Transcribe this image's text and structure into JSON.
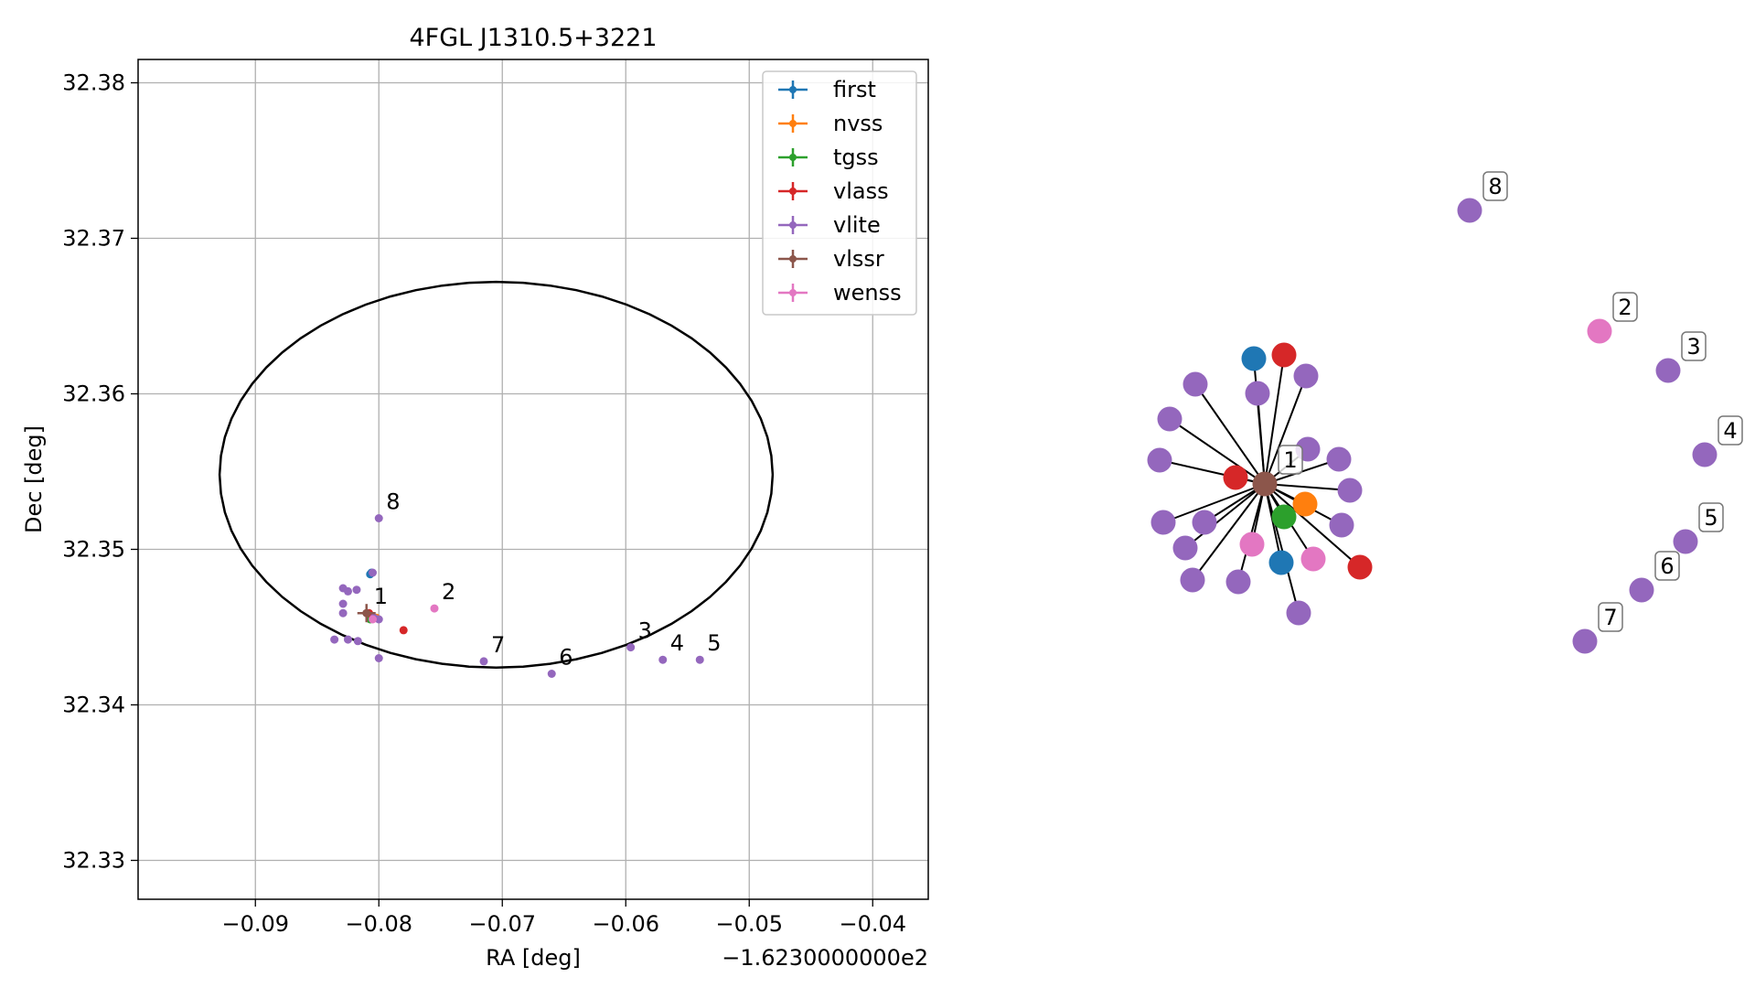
{
  "chart_data": [
    {
      "type": "scatter",
      "title": "4FGL J1310.5+3221",
      "xlabel": "RA [deg]",
      "ylabel": "Dec [deg]",
      "x_offset_text": "−1.6230000000e2",
      "xlim": [
        -0.0995,
        -0.0355
      ],
      "ylim": [
        32.3275,
        32.3815
      ],
      "x_ticks": [
        -0.09,
        -0.08,
        -0.07,
        -0.06,
        -0.05,
        -0.04
      ],
      "x_tick_labels": [
        "−0.09",
        "−0.08",
        "−0.07",
        "−0.06",
        "−0.05",
        "−0.04"
      ],
      "y_ticks": [
        32.33,
        32.34,
        32.35,
        32.36,
        32.37,
        32.38
      ],
      "y_tick_labels": [
        "32.33",
        "32.34",
        "32.35",
        "32.36",
        "32.37",
        "32.38"
      ],
      "grid": true,
      "legend_position": "top-right",
      "ellipse": {
        "center": [
          -0.0705,
          32.3548
        ],
        "semi_axes": [
          0.0224,
          0.0124
        ],
        "color": "#000000"
      },
      "series": [
        {
          "name": "first",
          "color": "#1f77b4",
          "points": [
            [
              -0.0806,
              32.3485
            ],
            [
              -0.0807,
              32.3484
            ]
          ]
        },
        {
          "name": "nvss",
          "color": "#ff7f0e",
          "points": [
            [
              -0.0802,
              32.3456
            ]
          ]
        },
        {
          "name": "tgss",
          "color": "#2ca02c",
          "points": [
            [
              -0.0807,
              32.3455
            ]
          ]
        },
        {
          "name": "vlass",
          "color": "#d62728",
          "points": [
            [
              -0.0808,
              32.3459
            ],
            [
              -0.078,
              32.3448
            ]
          ]
        },
        {
          "name": "vlite",
          "color": "#9467bd",
          "points": [
            [
              -0.0829,
              32.3475
            ],
            [
              -0.0825,
              32.3473
            ],
            [
              -0.0818,
              32.3474
            ],
            [
              -0.0829,
              32.3465
            ],
            [
              -0.0829,
              32.3459
            ],
            [
              -0.0836,
              32.3442
            ],
            [
              -0.0825,
              32.3442
            ],
            [
              -0.0817,
              32.3441
            ],
            [
              -0.08,
              32.343
            ],
            [
              -0.08,
              32.3455
            ],
            [
              -0.0805,
              32.3485
            ],
            [
              -0.0804,
              32.3456
            ],
            [
              -0.08,
              32.352
            ],
            [
              -0.0596,
              32.3437
            ],
            [
              -0.057,
              32.3429
            ],
            [
              -0.054,
              32.3429
            ],
            [
              -0.066,
              32.342
            ],
            [
              -0.0715,
              32.3428
            ]
          ]
        },
        {
          "name": "vlssr",
          "color": "#8c564b",
          "points": [
            [
              -0.081,
              32.3459
            ]
          ]
        },
        {
          "name": "wenss",
          "color": "#e377c2",
          "points": [
            [
              -0.0805,
              32.3455
            ],
            [
              -0.0755,
              32.3462
            ]
          ]
        }
      ],
      "annotations": [
        {
          "text": "1",
          "x": -0.081,
          "y": 32.3459
        },
        {
          "text": "2",
          "x": -0.0755,
          "y": 32.3462
        },
        {
          "text": "3",
          "x": -0.0596,
          "y": 32.3437
        },
        {
          "text": "4",
          "x": -0.057,
          "y": 32.3429
        },
        {
          "text": "5",
          "x": -0.054,
          "y": 32.3429
        },
        {
          "text": "6",
          "x": -0.066,
          "y": 32.342
        },
        {
          "text": "7",
          "x": -0.0715,
          "y": 32.3428
        },
        {
          "text": "8",
          "x": -0.08,
          "y": 32.352
        }
      ]
    },
    {
      "type": "network-graph",
      "hub_color": "#8c564b",
      "edge_color": "#000000",
      "cluster_colors": [
        "#1f77b4",
        "#d62728",
        "#9467bd",
        "#9467bd",
        "#9467bd",
        "#9467bd",
        "#9467bd",
        "#9467bd",
        "#9467bd",
        "#9467bd",
        "#9467bd",
        "#9467bd",
        "#9467bd",
        "#9467bd",
        "#9467bd",
        "#ff7f0e",
        "#2ca02c",
        "#e377c2",
        "#e377c2",
        "#1f77b4",
        "#d62728",
        "#d62728",
        "#9467bd",
        "#9467bd"
      ],
      "labeled_nodes": [
        {
          "label": "1",
          "color": "#8c564b"
        },
        {
          "label": "2",
          "color": "#e377c2"
        },
        {
          "label": "3",
          "color": "#9467bd"
        },
        {
          "label": "4",
          "color": "#9467bd"
        },
        {
          "label": "5",
          "color": "#9467bd"
        },
        {
          "label": "6",
          "color": "#9467bd"
        },
        {
          "label": "7",
          "color": "#9467bd"
        },
        {
          "label": "8",
          "color": "#9467bd"
        }
      ]
    }
  ]
}
